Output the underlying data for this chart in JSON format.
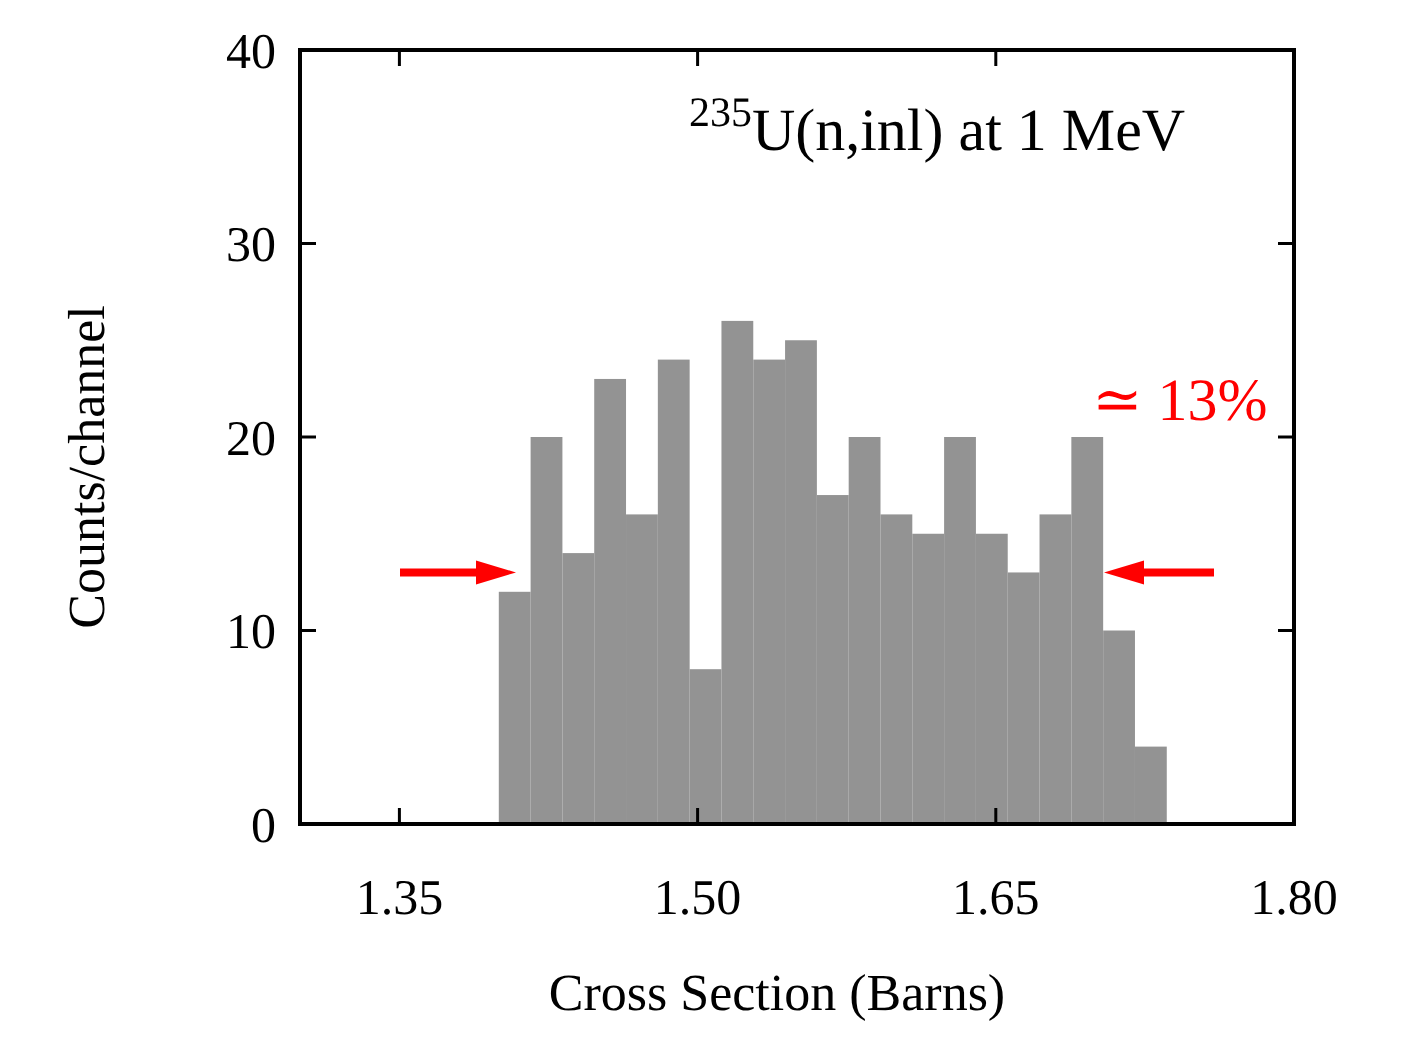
{
  "chart_data": {
    "type": "histogram",
    "title": "$^{235}$U(n,inl) at 1 MeV",
    "xlabel": "Cross Section (Barns)",
    "ylabel": "Counts/channel",
    "bins": [
      1.4,
      1.416,
      1.432,
      1.448,
      1.464,
      1.48,
      1.496,
      1.512,
      1.528,
      1.544,
      1.56,
      1.576,
      1.592,
      1.608,
      1.624,
      1.64,
      1.656,
      1.672,
      1.688,
      1.704,
      1.72,
      1.736
    ],
    "values": [
      12,
      20,
      14,
      23,
      16,
      24,
      8,
      26,
      24,
      25,
      17,
      20,
      16,
      15,
      20,
      15,
      13,
      16,
      20,
      10,
      4
    ],
    "color": "#939393",
    "xlim": [
      1.3,
      1.8
    ],
    "xticks": [
      {
        "value": 1.35,
        "label": "1.35"
      },
      {
        "value": 1.5,
        "label": "1.50"
      },
      {
        "value": 1.65,
        "label": "1.65"
      },
      {
        "value": 1.8,
        "label": "1.80"
      }
    ],
    "ylim": [
      0,
      40
    ],
    "yticks": [
      0,
      10,
      20,
      30,
      40
    ],
    "annotations": [
      "≃ 13%"
    ],
    "grid": false
  }
}
